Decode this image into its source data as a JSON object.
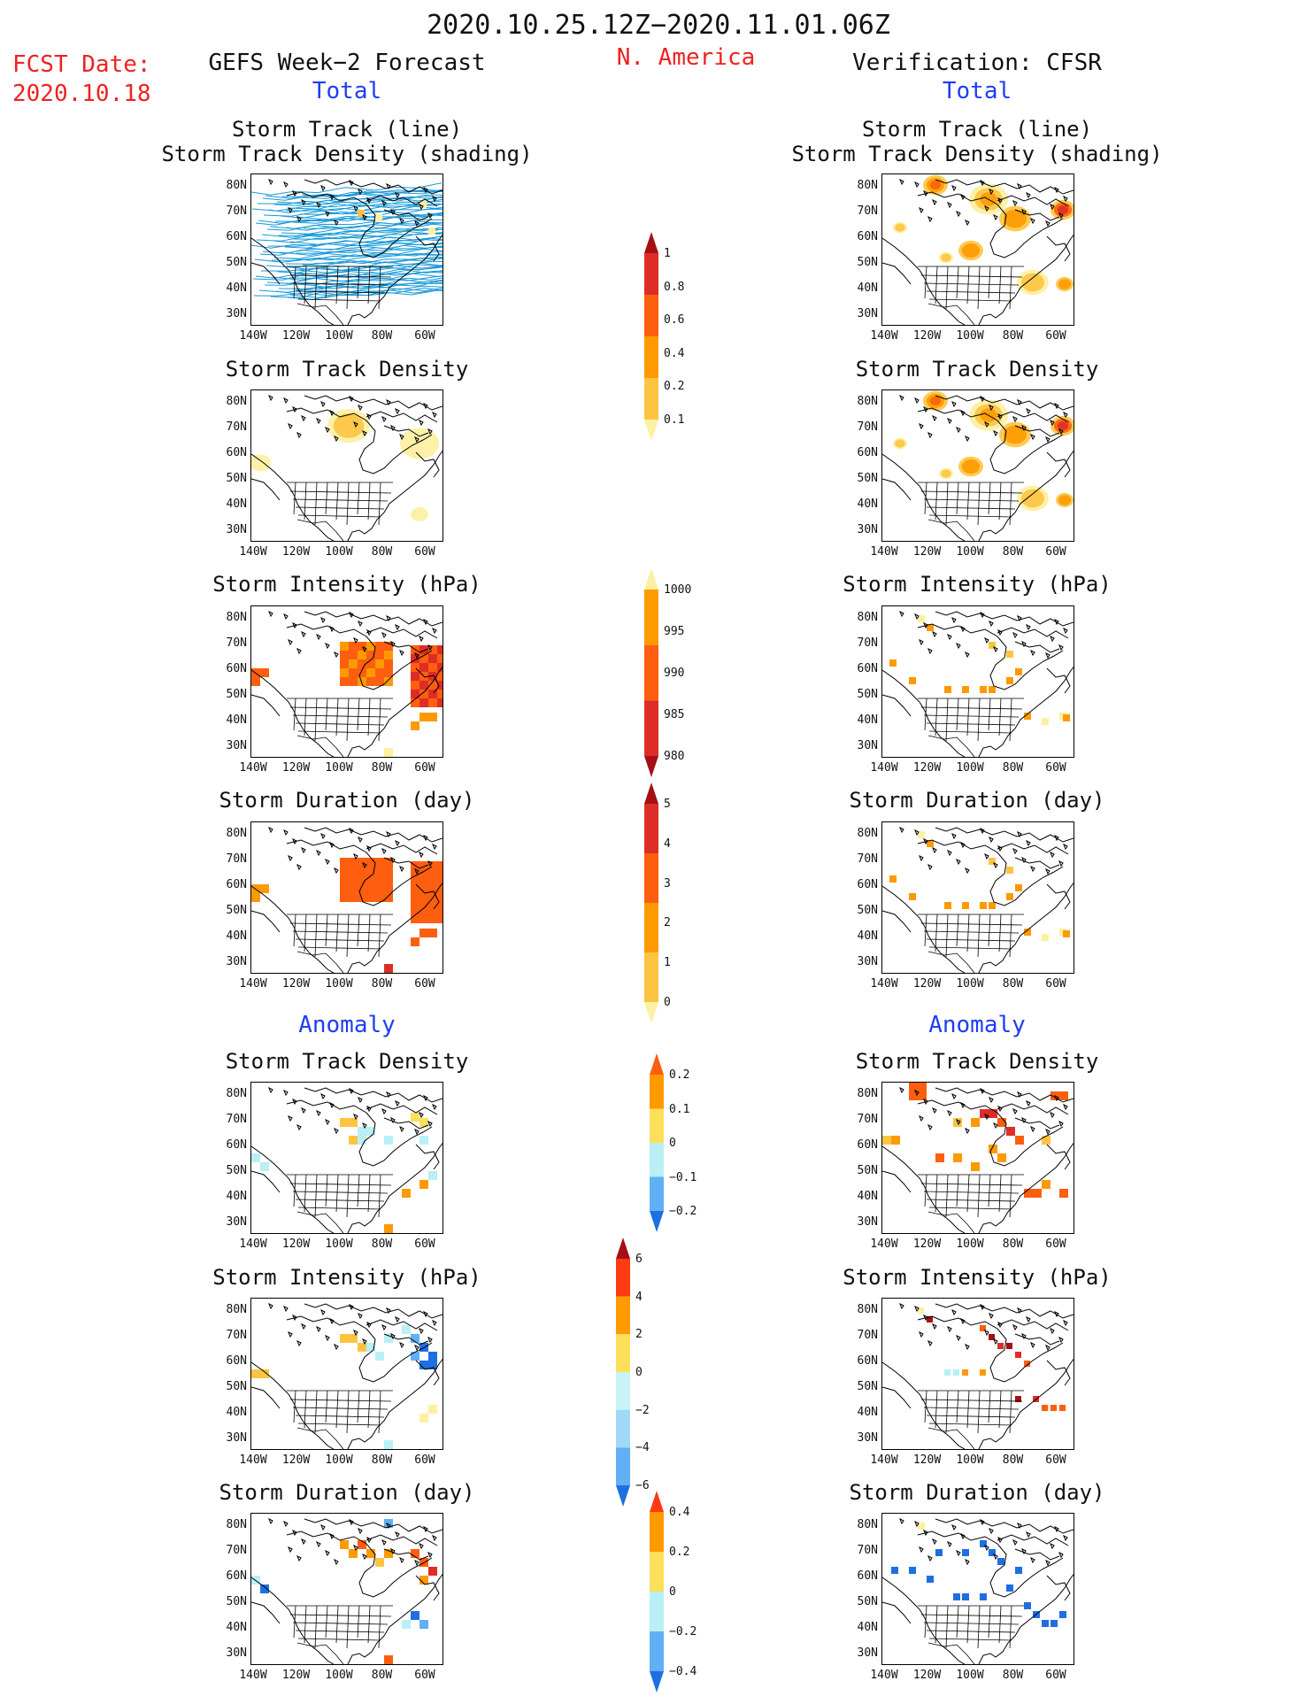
{
  "header": {
    "period": "2020.10.25.12Z−2020.11.01.06Z",
    "region": "N. America",
    "fcst_label": "FCST Date:",
    "fcst_date": "2020.10.18",
    "left_title": "GEFS Week−2 Forecast",
    "right_title": "Verification: CFSR",
    "total": "Total",
    "anomaly": "Anomaly"
  },
  "panel_titles": {
    "track_line": "Storm Track (line)",
    "track_density_shading": "Storm Track Density (shading)",
    "track_density": "Storm Track Density",
    "intensity": "Storm Intensity (hPa)",
    "duration": "Storm Duration (day)"
  },
  "axes": {
    "lat_labels": [
      "80N",
      "70N",
      "60N",
      "50N",
      "40N",
      "30N"
    ],
    "lon_labels": [
      "140W",
      "120W",
      "100W",
      "80W",
      "60W"
    ]
  },
  "colorbars": {
    "total_density": {
      "labels": [
        "1",
        "0.8",
        "0.6",
        "0.4",
        "0.2",
        "0.1"
      ],
      "colors": [
        "#a50f15",
        "#de2d26",
        "#fd5e0f",
        "#fe9a00",
        "#fdc441",
        "#fdf0a0"
      ]
    },
    "total_intensity": {
      "labels": [
        "1000",
        "995",
        "990",
        "985",
        "980"
      ],
      "colors": [
        "#fdf0a0",
        "#fe9a00",
        "#fd5e0f",
        "#de2d26",
        "#a50f15"
      ]
    },
    "total_duration": {
      "labels": [
        "5",
        "4",
        "3",
        "2",
        "1",
        "0"
      ],
      "colors": [
        "#a50f15",
        "#de2d26",
        "#fd5e0f",
        "#fe9a00",
        "#fdc441",
        "#fdf0a0"
      ]
    },
    "anom_density": {
      "labels": [
        "0.2",
        "0.1",
        "0",
        "−0.1",
        "−0.2"
      ],
      "colors": [
        "#fd5e0f",
        "#fe9a00",
        "#fde05a",
        "#b8f0f5",
        "#60b0f5",
        "#1e6fe0"
      ]
    },
    "anom_intensity": {
      "labels": [
        "6",
        "4",
        "2",
        "0",
        "−2",
        "−4",
        "−6"
      ],
      "colors": [
        "#a50f15",
        "#fd3a12",
        "#fe9a00",
        "#fde05a",
        "#c8f4f8",
        "#a0d8f8",
        "#60b0f5",
        "#1e6fe0"
      ]
    },
    "anom_duration": {
      "labels": [
        "0.4",
        "0.2",
        "0",
        "−0.2",
        "−0.4"
      ],
      "colors": [
        "#fd3a12",
        "#fe9a00",
        "#fde05a",
        "#b8f0f5",
        "#60b0f5",
        "#1e6fe0"
      ]
    }
  },
  "colors": {
    "red_text": "#ee2222",
    "blue_text": "#1f3df5",
    "track_line": "#1a9ad8"
  }
}
